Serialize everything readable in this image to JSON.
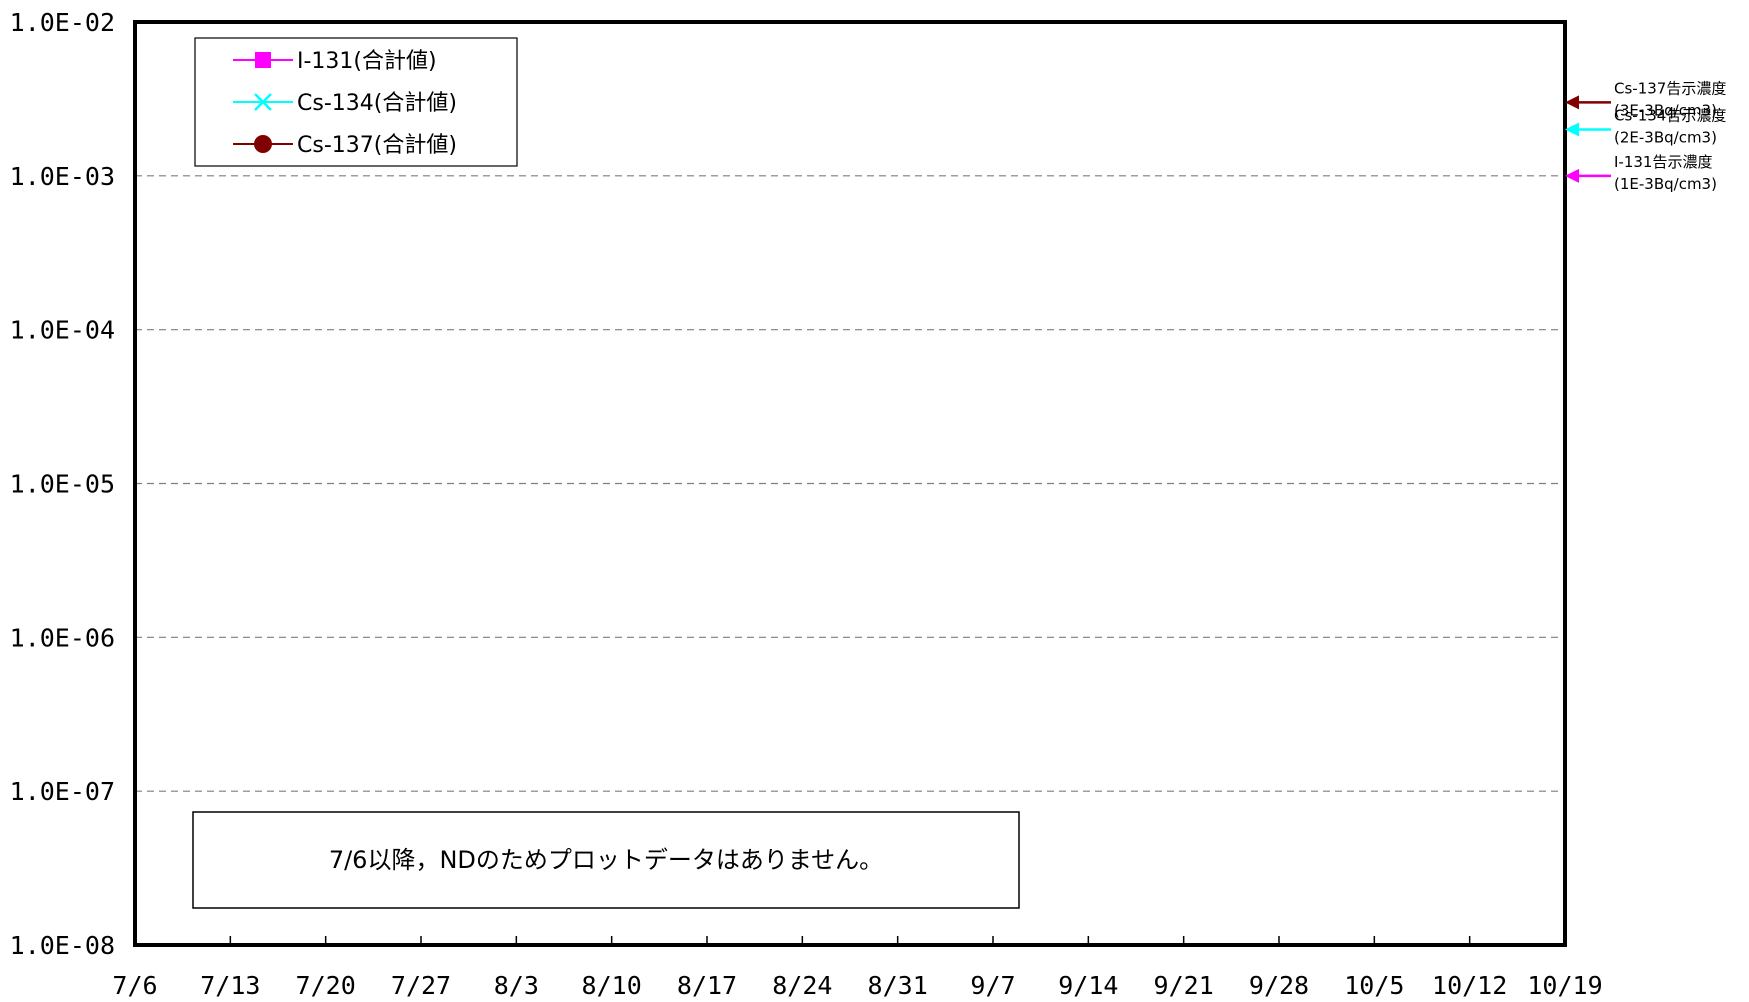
{
  "chart_data": {
    "type": "line",
    "y_scale": "log",
    "ylim": [
      1e-08,
      0.01
    ],
    "y_ticks": [
      "1.0E-02",
      "1.0E-03",
      "1.0E-04",
      "1.0E-05",
      "1.0E-06",
      "1.0E-07",
      "1.0E-08"
    ],
    "x_ticks": [
      "7/6",
      "7/13",
      "7/20",
      "7/27",
      "8/3",
      "8/10",
      "8/17",
      "8/24",
      "8/31",
      "9/7",
      "9/14",
      "9/21",
      "9/28",
      "10/5",
      "10/12",
      "10/19"
    ],
    "grid": true,
    "series": [
      {
        "name": "I-131(合計値)",
        "color": "#ff00ff",
        "marker": "square",
        "values": []
      },
      {
        "name": "Cs-134(合計値)",
        "color": "#00ffff",
        "marker": "x",
        "values": []
      },
      {
        "name": "Cs-137(合計値)",
        "color": "#800000",
        "marker": "circle",
        "values": []
      }
    ],
    "legend_position": "top-left",
    "reference_levels": [
      {
        "label": "Cs-137告示濃度",
        "sublabel": "(3E-3Bq/cm3)",
        "value": 0.003,
        "color": "#800000"
      },
      {
        "label": "Cs-134告示濃度",
        "sublabel": "(2E-3Bq/cm3)",
        "value": 0.002,
        "color": "#00ffff"
      },
      {
        "label": "I-131告示濃度",
        "sublabel": "(1E-3Bq/cm3)",
        "value": 0.001,
        "color": "#ff00ff"
      }
    ],
    "annotation": "7/6以降，NDのためプロットデータはありません。"
  }
}
